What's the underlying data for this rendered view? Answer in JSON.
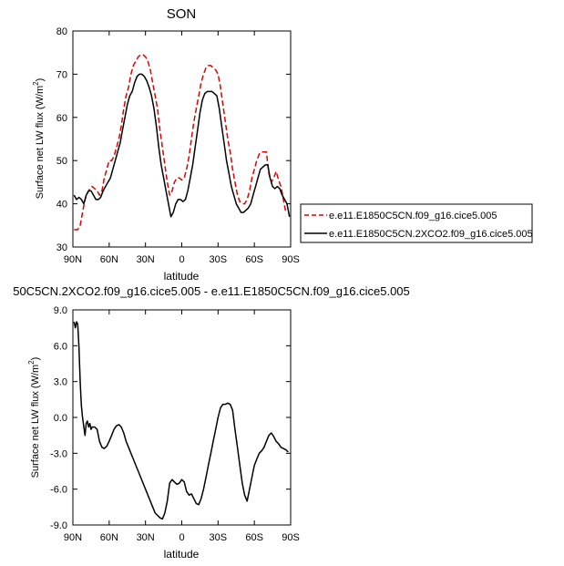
{
  "chart_data": [
    {
      "type": "line",
      "title": "SON",
      "xlabel": "latitude",
      "ylabel": "Surface net LW flux (W/m2)",
      "xlim": [
        90,
        -90
      ],
      "ylim": [
        30,
        80
      ],
      "x_tick_values": [
        90,
        60,
        30,
        0,
        -30,
        -60,
        -90
      ],
      "x_tick_labels": [
        "90N",
        "60N",
        "30N",
        "0",
        "30S",
        "60S",
        "90S"
      ],
      "y_tick_values": [
        30,
        40,
        50,
        60,
        70,
        80
      ],
      "y_tick_labels": [
        "30",
        "40",
        "50",
        "60",
        "70",
        "80"
      ],
      "legend_position": "right",
      "series": [
        {
          "name": "e.e11.E1850C5CN.f09_g16.cice5.005",
          "color": "#e00000",
          "dash": "dashed",
          "points": [
            [
              89,
              34
            ],
            [
              86,
              34
            ],
            [
              84,
              35
            ],
            [
              82,
              38
            ],
            [
              80,
              41
            ],
            [
              78,
              42.5
            ],
            [
              76,
              43.5
            ],
            [
              74,
              44
            ],
            [
              72,
              43.5
            ],
            [
              70,
              43
            ],
            [
              68,
              42
            ],
            [
              66,
              43
            ],
            [
              64,
              46
            ],
            [
              62,
              48
            ],
            [
              60,
              50
            ],
            [
              58,
              50
            ],
            [
              56,
              51
            ],
            [
              54,
              53
            ],
            [
              52,
              55
            ],
            [
              50,
              58
            ],
            [
              48,
              62
            ],
            [
              46,
              65
            ],
            [
              44,
              67
            ],
            [
              42,
              70
            ],
            [
              40,
              72
            ],
            [
              38,
              73
            ],
            [
              36,
              74
            ],
            [
              34,
              74.5
            ],
            [
              32,
              74.5
            ],
            [
              30,
              74
            ],
            [
              28,
              73
            ],
            [
              26,
              71
            ],
            [
              24,
              68
            ],
            [
              22,
              65
            ],
            [
              20,
              62
            ],
            [
              18,
              57
            ],
            [
              16,
              53
            ],
            [
              14,
              49
            ],
            [
              12,
              45
            ],
            [
              10,
              42
            ],
            [
              8,
              43
            ],
            [
              6,
              45
            ],
            [
              4,
              46
            ],
            [
              2,
              46
            ],
            [
              0,
              45.5
            ],
            [
              -2,
              46
            ],
            [
              -4,
              48
            ],
            [
              -6,
              51
            ],
            [
              -8,
              55
            ],
            [
              -10,
              59
            ],
            [
              -12,
              62
            ],
            [
              -14,
              65
            ],
            [
              -16,
              68
            ],
            [
              -18,
              70
            ],
            [
              -20,
              71.5
            ],
            [
              -22,
              72
            ],
            [
              -24,
              72
            ],
            [
              -26,
              71.5
            ],
            [
              -28,
              71
            ],
            [
              -30,
              70
            ],
            [
              -32,
              67
            ],
            [
              -34,
              63
            ],
            [
              -36,
              59
            ],
            [
              -38,
              55
            ],
            [
              -40,
              52
            ],
            [
              -42,
              48
            ],
            [
              -44,
              45
            ],
            [
              -46,
              42
            ],
            [
              -48,
              40.5
            ],
            [
              -50,
              40
            ],
            [
              -52,
              40
            ],
            [
              -54,
              41
            ],
            [
              -56,
              43
            ],
            [
              -58,
              46
            ],
            [
              -60,
              48
            ],
            [
              -62,
              50
            ],
            [
              -64,
              51.5
            ],
            [
              -66,
              52
            ],
            [
              -68,
              52
            ],
            [
              -70,
              52
            ],
            [
              -72,
              47
            ],
            [
              -74,
              45
            ],
            [
              -76,
              46
            ],
            [
              -78,
              47.5
            ],
            [
              -80,
              45.5
            ],
            [
              -82,
              44
            ],
            [
              -84,
              41
            ],
            [
              -86,
              38
            ]
          ]
        },
        {
          "name": "e.e11.E1850C5CN.2XCO2.f09_g16.cice5.005",
          "color": "#000000",
          "dash": "solid",
          "points": [
            [
              89,
              42
            ],
            [
              87,
              41
            ],
            [
              85,
              41.5
            ],
            [
              83,
              41
            ],
            [
              81,
              40
            ],
            [
              79,
              42
            ],
            [
              77,
              43
            ],
            [
              75,
              43
            ],
            [
              73,
              42
            ],
            [
              71,
              41
            ],
            [
              69,
              41
            ],
            [
              67,
              41.5
            ],
            [
              65,
              43
            ],
            [
              63,
              44
            ],
            [
              61,
              45
            ],
            [
              59,
              46
            ],
            [
              57,
              48
            ],
            [
              55,
              50
            ],
            [
              53,
              52
            ],
            [
              51,
              54
            ],
            [
              49,
              57
            ],
            [
              47,
              60
            ],
            [
              45,
              63
            ],
            [
              43,
              65
            ],
            [
              41,
              66
            ],
            [
              39,
              68
            ],
            [
              37,
              69.5
            ],
            [
              35,
              70
            ],
            [
              33,
              70
            ],
            [
              31,
              69.5
            ],
            [
              29,
              68.5
            ],
            [
              27,
              67
            ],
            [
              25,
              65
            ],
            [
              23,
              62
            ],
            [
              21,
              58
            ],
            [
              19,
              53
            ],
            [
              17,
              49
            ],
            [
              15,
              46
            ],
            [
              13,
              43
            ],
            [
              11,
              40
            ],
            [
              9,
              37
            ],
            [
              7,
              38
            ],
            [
              5,
              40
            ],
            [
              3,
              41
            ],
            [
              1,
              41
            ],
            [
              -1,
              40.5
            ],
            [
              -3,
              41
            ],
            [
              -5,
              43
            ],
            [
              -7,
              46
            ],
            [
              -9,
              49
            ],
            [
              -11,
              53
            ],
            [
              -13,
              57
            ],
            [
              -15,
              61
            ],
            [
              -17,
              64
            ],
            [
              -19,
              65.5
            ],
            [
              -21,
              66
            ],
            [
              -23,
              66
            ],
            [
              -25,
              66
            ],
            [
              -27,
              65.5
            ],
            [
              -29,
              65
            ],
            [
              -31,
              62
            ],
            [
              -33,
              58
            ],
            [
              -35,
              54
            ],
            [
              -37,
              50
            ],
            [
              -39,
              47
            ],
            [
              -41,
              44
            ],
            [
              -43,
              42
            ],
            [
              -45,
              40
            ],
            [
              -47,
              39
            ],
            [
              -49,
              38
            ],
            [
              -51,
              38
            ],
            [
              -53,
              38.5
            ],
            [
              -55,
              39
            ],
            [
              -57,
              40
            ],
            [
              -59,
              42
            ],
            [
              -61,
              44
            ],
            [
              -63,
              46
            ],
            [
              -65,
              48
            ],
            [
              -67,
              48.5
            ],
            [
              -69,
              49
            ],
            [
              -71,
              49
            ],
            [
              -73,
              46
            ],
            [
              -75,
              44
            ],
            [
              -77,
              43.5
            ],
            [
              -79,
              44
            ],
            [
              -81,
              43.5
            ],
            [
              -83,
              42
            ],
            [
              -85,
              41
            ],
            [
              -87,
              40
            ],
            [
              -89,
              37
            ]
          ]
        }
      ]
    },
    {
      "type": "line",
      "title": "50C5CN.2XCO2.f09_g16.cice5.005 - e.e11.E1850C5CN.f09_g16.cice5.005",
      "xlabel": "latitude",
      "ylabel": "Surface net LW flux (W/m2)",
      "xlim": [
        90,
        -90
      ],
      "ylim": [
        -9,
        9
      ],
      "x_tick_values": [
        90,
        60,
        30,
        0,
        -30,
        -60,
        -90
      ],
      "x_tick_labels": [
        "90N",
        "60N",
        "30N",
        "0",
        "30S",
        "60S",
        "90S"
      ],
      "y_tick_values": [
        -9,
        -6,
        -3,
        0,
        3,
        6,
        9
      ],
      "y_tick_labels": [
        "-9.0",
        "-6.0",
        "-3.0",
        "0.0",
        "3.0",
        "6.0",
        "9.0"
      ],
      "series": [
        {
          "color": "#000000",
          "dash": "solid",
          "points": [
            [
              89,
              8
            ],
            [
              88,
              7.5
            ],
            [
              87,
              8
            ],
            [
              86,
              7.8
            ],
            [
              85,
              6
            ],
            [
              84,
              3
            ],
            [
              83,
              1
            ],
            [
              82,
              0
            ],
            [
              81,
              -0.8
            ],
            [
              80,
              -1.5
            ],
            [
              79,
              -0.5
            ],
            [
              78,
              -0.3
            ],
            [
              77,
              -0.8
            ],
            [
              76,
              -0.5
            ],
            [
              75,
              -1
            ],
            [
              74,
              -0.8
            ],
            [
              72,
              -0.8
            ],
            [
              70,
              -1
            ],
            [
              68,
              -2
            ],
            [
              66,
              -2.5
            ],
            [
              64,
              -2.6
            ],
            [
              62,
              -2.4
            ],
            [
              60,
              -2
            ],
            [
              58,
              -1.5
            ],
            [
              56,
              -1
            ],
            [
              54,
              -0.7
            ],
            [
              52,
              -0.6
            ],
            [
              50,
              -0.8
            ],
            [
              48,
              -1.3
            ],
            [
              46,
              -2
            ],
            [
              44,
              -2.5
            ],
            [
              42,
              -3
            ],
            [
              40,
              -3.5
            ],
            [
              38,
              -4
            ],
            [
              36,
              -4.5
            ],
            [
              34,
              -5
            ],
            [
              32,
              -5.5
            ],
            [
              30,
              -6
            ],
            [
              28,
              -6.5
            ],
            [
              26,
              -7
            ],
            [
              24,
              -7.5
            ],
            [
              22,
              -8
            ],
            [
              20,
              -8.2
            ],
            [
              18,
              -8.4
            ],
            [
              16,
              -8.5
            ],
            [
              14,
              -8
            ],
            [
              12,
              -7
            ],
            [
              10,
              -5.5
            ],
            [
              8,
              -5.2
            ],
            [
              6,
              -5.4
            ],
            [
              4,
              -5.6
            ],
            [
              2,
              -5.5
            ],
            [
              0,
              -5.2
            ],
            [
              -2,
              -5.4
            ],
            [
              -4,
              -6.2
            ],
            [
              -6,
              -6.5
            ],
            [
              -8,
              -6.4
            ],
            [
              -10,
              -6.8
            ],
            [
              -12,
              -7.2
            ],
            [
              -14,
              -7.3
            ],
            [
              -16,
              -6.8
            ],
            [
              -18,
              -6
            ],
            [
              -20,
              -5
            ],
            [
              -22,
              -4
            ],
            [
              -24,
              -3
            ],
            [
              -26,
              -2
            ],
            [
              -28,
              -1
            ],
            [
              -30,
              0
            ],
            [
              -32,
              0.8
            ],
            [
              -34,
              1.1
            ],
            [
              -36,
              1.1
            ],
            [
              -38,
              1.2
            ],
            [
              -40,
              1.1
            ],
            [
              -42,
              0.6
            ],
            [
              -44,
              -1
            ],
            [
              -46,
              -2.5
            ],
            [
              -48,
              -4
            ],
            [
              -50,
              -5.5
            ],
            [
              -52,
              -6.5
            ],
            [
              -54,
              -7
            ],
            [
              -56,
              -6
            ],
            [
              -58,
              -5
            ],
            [
              -60,
              -4
            ],
            [
              -62,
              -3.5
            ],
            [
              -64,
              -3
            ],
            [
              -66,
              -2.8
            ],
            [
              -68,
              -2.5
            ],
            [
              -70,
              -2
            ],
            [
              -72,
              -1.5
            ],
            [
              -74,
              -1.3
            ],
            [
              -76,
              -1.6
            ],
            [
              -78,
              -2
            ],
            [
              -80,
              -2.2
            ],
            [
              -82,
              -2.5
            ],
            [
              -84,
              -2.6
            ],
            [
              -86,
              -2.7
            ],
            [
              -88,
              -2.9
            ]
          ]
        }
      ]
    }
  ]
}
